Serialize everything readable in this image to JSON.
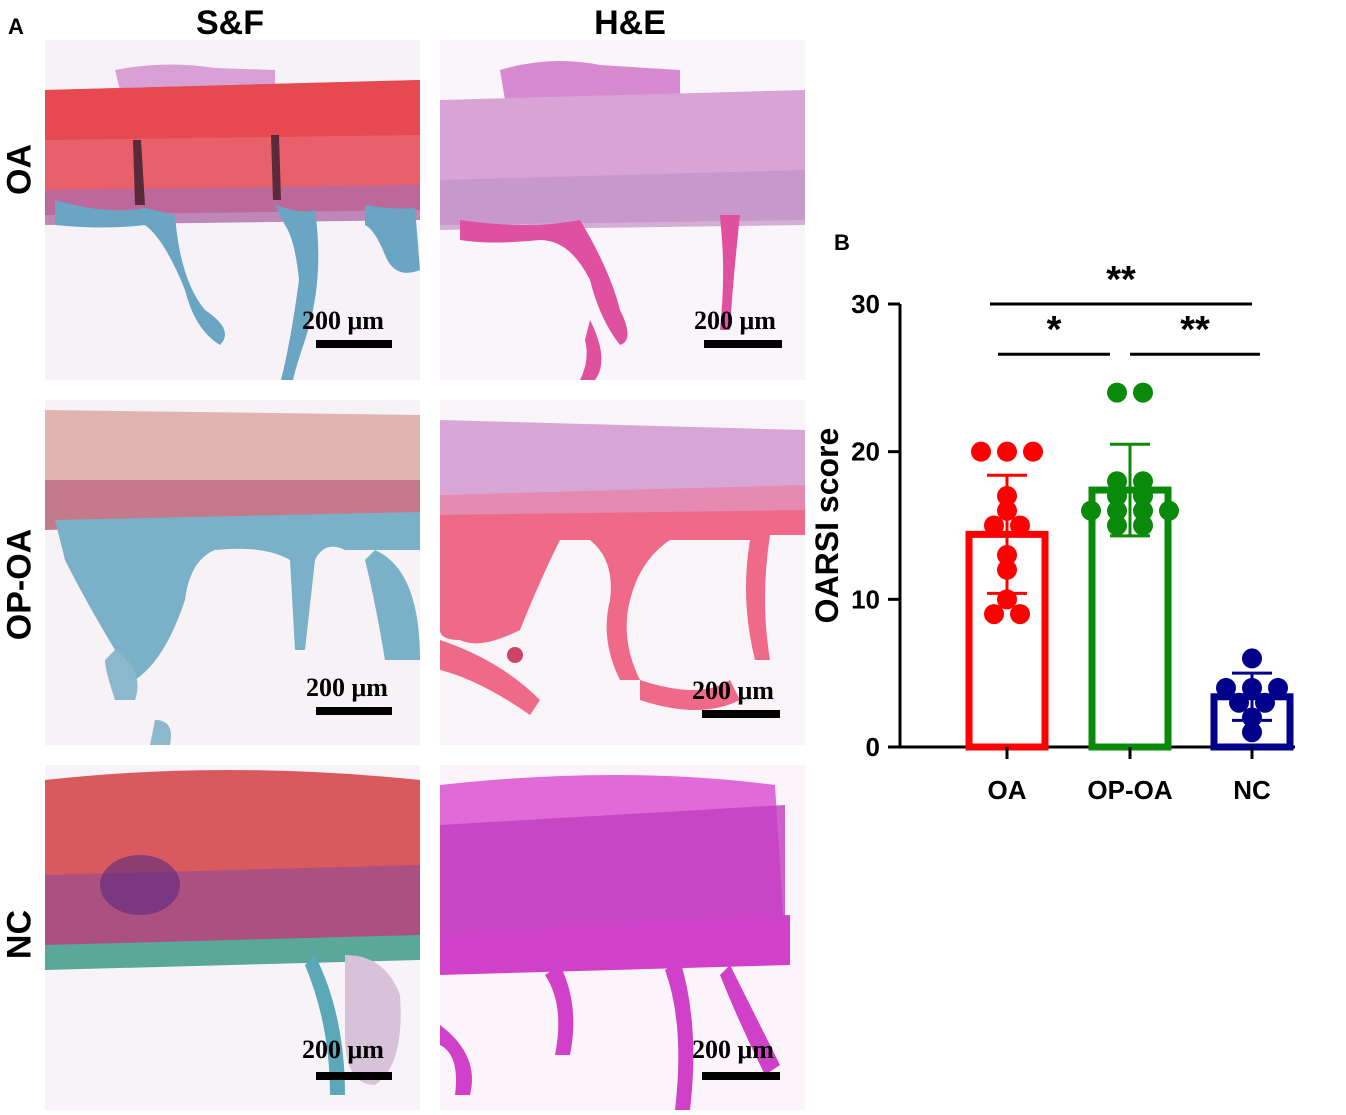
{
  "panels": {
    "A": "A",
    "B": "B"
  },
  "histology": {
    "columns": [
      "S&F",
      "H&E"
    ],
    "rows": [
      "OA",
      "OP-OA",
      "NC"
    ],
    "scale_bar_label": "200 μm",
    "stain_colors": {
      "sf_cartilage": "#e0454a",
      "sf_bone": "#5a9ec0",
      "he_cartilage": "#d8a0d8",
      "he_bone": "#e0508a",
      "nc_he": "#d040c8"
    }
  },
  "chart_data": {
    "type": "bar",
    "ylabel": "OARSI score",
    "ylim": [
      0,
      30
    ],
    "yticks": [
      0,
      10,
      20,
      30
    ],
    "categories": [
      "OA",
      "OP-OA",
      "NC"
    ],
    "series": [
      {
        "name": "OA",
        "color": "#ff0000",
        "mean": 14.4,
        "sd": 4.0,
        "points": [
          20,
          20,
          20,
          17,
          16,
          15,
          15,
          13,
          12,
          10,
          9,
          9
        ]
      },
      {
        "name": "OP-OA",
        "color": "#0a8a0a",
        "mean": 17.4,
        "sd": 3.1,
        "points": [
          24,
          24,
          18,
          18,
          17,
          17,
          16,
          16,
          16,
          16,
          15,
          15
        ]
      },
      {
        "name": "NC",
        "color": "#00008b",
        "mean": 3.4,
        "sd": 1.6,
        "points": [
          6,
          4,
          4,
          4,
          3,
          3,
          2,
          1
        ]
      }
    ],
    "significance": [
      {
        "from": "OA",
        "to": "NC",
        "label": "**"
      },
      {
        "from": "OA",
        "to": "OP-OA",
        "label": "*"
      },
      {
        "from": "OP-OA",
        "to": "NC",
        "label": "**"
      }
    ]
  }
}
